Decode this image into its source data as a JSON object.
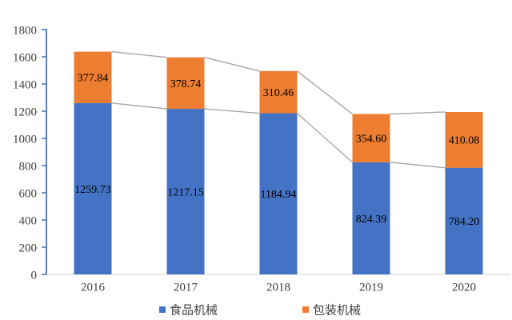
{
  "chart_data": {
    "type": "bar",
    "stacked": true,
    "title": "",
    "categories": [
      "2016",
      "2017",
      "2018",
      "2019",
      "2020"
    ],
    "series": [
      {
        "name": "食品机械",
        "color": "#4472C4",
        "values": [
          1259.73,
          1217.15,
          1184.94,
          824.39,
          784.2
        ],
        "labels": [
          "1259.73",
          "1217.15",
          "1184.94",
          "824.39",
          "784.20"
        ]
      },
      {
        "name": "包装机械",
        "color": "#ED7D31",
        "values": [
          377.84,
          378.74,
          310.46,
          354.6,
          410.08
        ],
        "labels": [
          "377.84",
          "378.74",
          "310.46",
          "354.60",
          "410.08"
        ]
      }
    ],
    "totals": [
      1637.57,
      1595.89,
      1495.4,
      1178.99,
      1194.28
    ],
    "ylim": [
      0,
      1800
    ],
    "ytick_step": 200,
    "ytick_labels": [
      "0",
      "200",
      "400",
      "600",
      "800",
      "1000",
      "1200",
      "1400",
      "1600",
      "1800"
    ],
    "grid": false,
    "legend_position": "bottom",
    "legend": [
      "食品机械",
      "包装机械"
    ],
    "series_lines": true
  },
  "colors": {
    "bar_blue": "#4472C4",
    "bar_orange": "#ED7D31",
    "series_line": "#A6A6A6",
    "y_axis": "#4472C4",
    "x_axis": "#D9D9D9",
    "tick_label": "#404040",
    "data_label": "#000000",
    "background": "#FFFFFF"
  }
}
